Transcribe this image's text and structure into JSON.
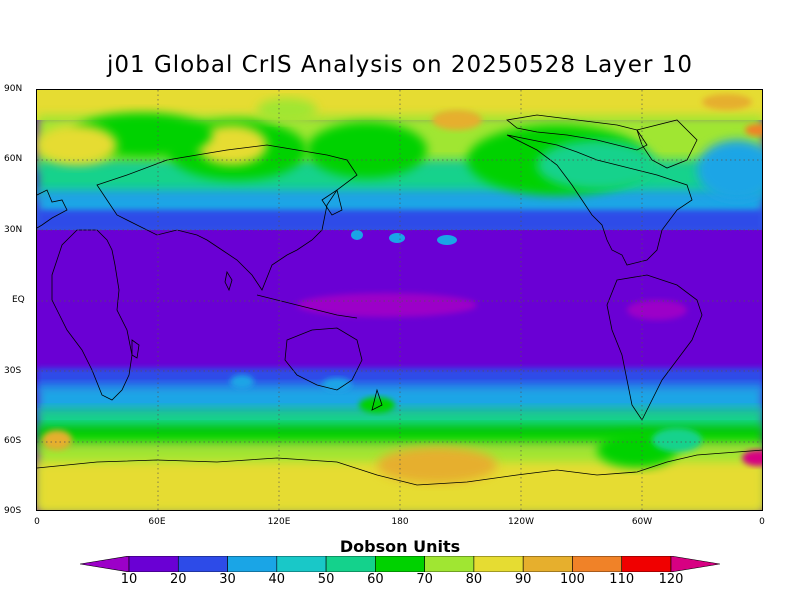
{
  "title": "j01 Global CrIS Analysis on 20250528 Layer 10",
  "colorbar": {
    "title": "Dobson Units",
    "ticks": [
      "10",
      "20",
      "30",
      "40",
      "50",
      "60",
      "70",
      "80",
      "90",
      "100",
      "110",
      "120"
    ],
    "colors": [
      "#9c00c8",
      "#6a00d4",
      "#2d4be8",
      "#1aa5e6",
      "#19c8c8",
      "#14d28c",
      "#00d200",
      "#a0e632",
      "#e6dc32",
      "#e6af2d",
      "#f08228",
      "#f00000",
      "#d70082"
    ]
  },
  "map": {
    "lat_labels": [
      "90N",
      "60N",
      "30N",
      "EQ",
      "30S",
      "60S",
      "90S"
    ],
    "lon_labels": [
      "0",
      "60E",
      "120E",
      "180",
      "120W",
      "60W",
      "0"
    ],
    "projection": "cylindrical equidistant",
    "grid": "dotted"
  }
}
